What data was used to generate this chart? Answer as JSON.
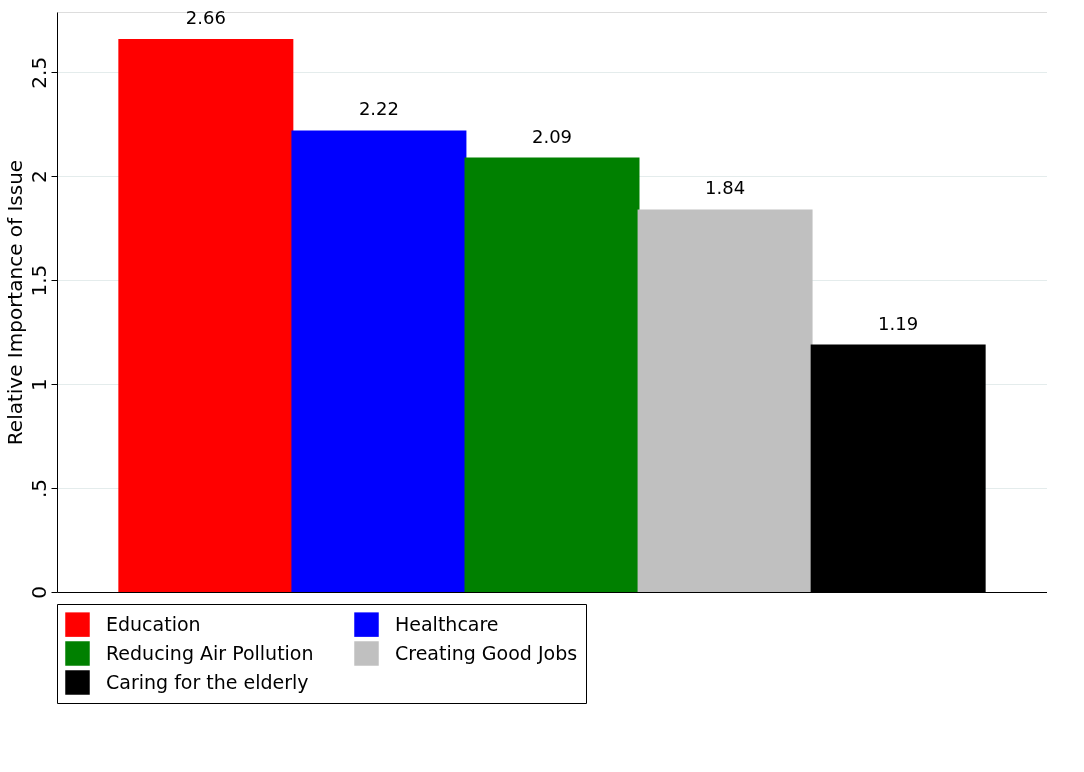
{
  "chart_data": {
    "type": "bar",
    "ylabel": "Relative Importance of Issue",
    "categories": [
      null,
      null,
      null,
      null,
      null
    ],
    "series": [
      {
        "name": "Education",
        "color": "#ff0000",
        "values": [
          2.66,
          null,
          null,
          null,
          null
        ]
      },
      {
        "name": "Healthcare",
        "color": "#0000ff",
        "values": [
          null,
          2.22,
          null,
          null,
          null
        ]
      },
      {
        "name": "Reducing Air Pollution",
        "color": "#008000",
        "values": [
          null,
          null,
          2.09,
          null,
          null
        ]
      },
      {
        "name": "Creating Good Jobs",
        "color": "#c0c0c0",
        "values": [
          null,
          null,
          null,
          1.84,
          null
        ]
      },
      {
        "name": "Caring for the elderly",
        "color": "#000000",
        "values": [
          null,
          null,
          null,
          null,
          1.19
        ]
      }
    ],
    "ylim": [
      0,
      2.79
    ],
    "yticks": [
      0,
      {
        "value": 0.5,
        "label": ".5"
      },
      1,
      1.5,
      2,
      2.5
    ],
    "grid": "y",
    "data_labels": true,
    "legend": "bottom",
    "tick_labels": "y"
  }
}
